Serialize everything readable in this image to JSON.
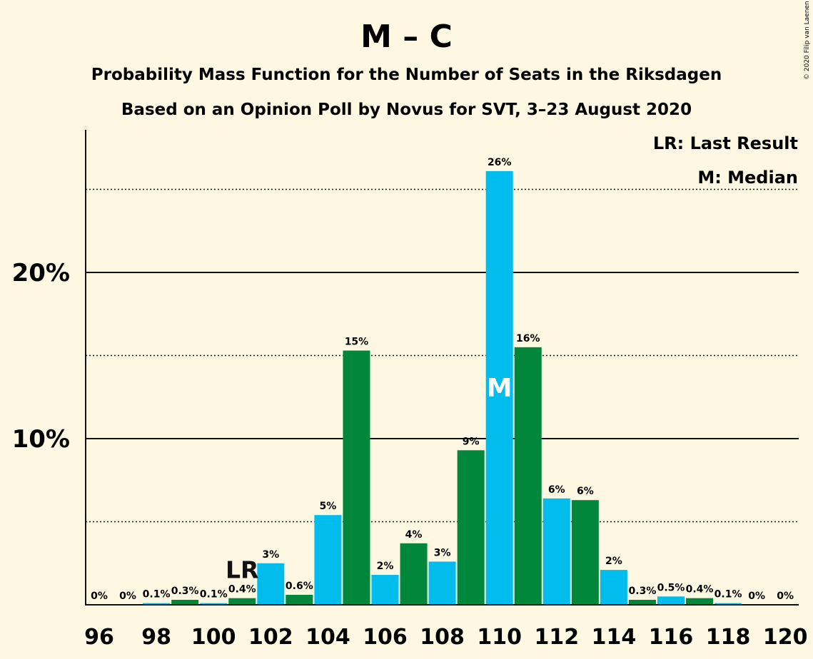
{
  "chart_data": {
    "type": "bar",
    "title": "M – C",
    "subtitle_1": "Probability Mass Function for the Number of Seats in the Riksdagen",
    "subtitle_2": "Based on an Opinion Poll by Novus for SVT, 3–23 August 2020",
    "copyright": "© 2020 Filip van Laenen",
    "legend": {
      "last_result": "LR: Last Result",
      "median": "M: Median"
    },
    "categories": [
      96,
      97,
      98,
      99,
      100,
      101,
      102,
      103,
      104,
      105,
      106,
      107,
      108,
      109,
      110,
      111,
      112,
      113,
      114,
      115,
      116,
      117,
      118,
      119,
      120
    ],
    "values": [
      0,
      0,
      0.1,
      0.3,
      0.1,
      0.4,
      2.5,
      0.6,
      5.4,
      15.3,
      1.8,
      3.7,
      2.6,
      9.3,
      26.1,
      15.5,
      6.4,
      6.3,
      2.1,
      0.3,
      0.5,
      0.4,
      0.1,
      0,
      0
    ],
    "value_labels": [
      "0%",
      "0%",
      "0.1%",
      "0.3%",
      "0.1%",
      "0.4%",
      "3%",
      "0.6%",
      "5%",
      "15%",
      "2%",
      "4%",
      "3%",
      "9%",
      "26%",
      "16%",
      "6%",
      "6%",
      "2%",
      "0.3%",
      "0.5%",
      "0.4%",
      "0.1%",
      "0%",
      "0%"
    ],
    "x_tick_labels": [
      "96",
      "98",
      "100",
      "102",
      "104",
      "106",
      "108",
      "110",
      "112",
      "114",
      "116",
      "118",
      "120"
    ],
    "y_tick_labels": [
      "10%",
      "20%"
    ],
    "y_major_ticks": [
      10,
      20
    ],
    "y_minor_ticks": [
      5,
      15,
      25
    ],
    "ylim": [
      0,
      28.5
    ],
    "last_result_seat": 101,
    "last_result_marker": "LR",
    "median_seat": 110,
    "median_marker": "M",
    "colors": {
      "blue": "#00bdee",
      "green": "#00873c",
      "background": "#fef8e3",
      "axis": "#111111"
    }
  }
}
